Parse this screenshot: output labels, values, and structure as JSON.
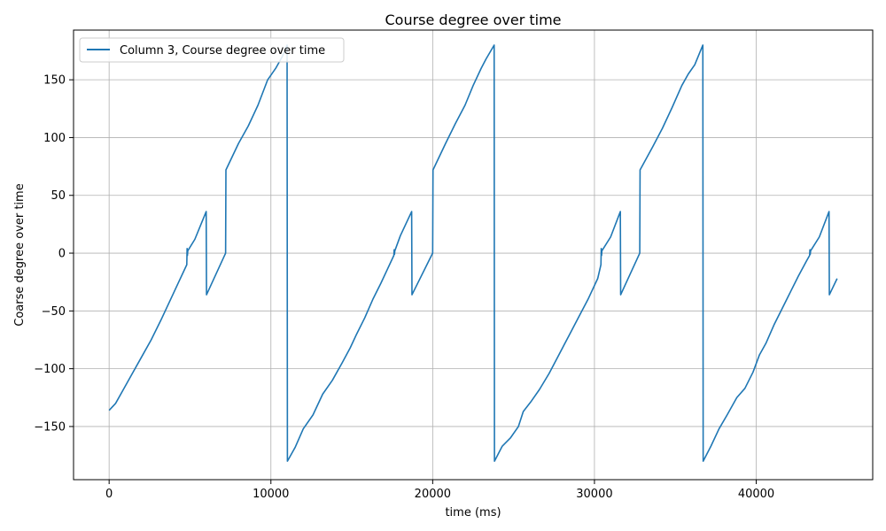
{
  "chart_data": {
    "type": "line",
    "title": "Course degree over time",
    "xlabel": "time (ms)",
    "ylabel": "Coarse degree over time",
    "xlim": [
      -2200,
      47200
    ],
    "ylim": [
      -196,
      193
    ],
    "xticks": [
      0,
      10000,
      20000,
      30000,
      40000
    ],
    "yticks": [
      -150,
      -100,
      -50,
      0,
      50,
      100,
      150
    ],
    "xtick_labels": [
      "0",
      "10000",
      "20000",
      "30000",
      "40000"
    ],
    "ytick_labels": [
      "−150",
      "−100",
      "−50",
      "0",
      "50",
      "100",
      "150"
    ],
    "grid": true,
    "legend": "top-left",
    "series": [
      {
        "name": "Column 3, Course degree over time",
        "color": "#1f77b4",
        "points": [
          [
            0,
            -136
          ],
          [
            400,
            -130
          ],
          [
            800,
            -120
          ],
          [
            1400,
            -105
          ],
          [
            2000,
            -90
          ],
          [
            2600,
            -75
          ],
          [
            3200,
            -58
          ],
          [
            3800,
            -40
          ],
          [
            4300,
            -25
          ],
          [
            4800,
            -10
          ],
          [
            4820,
            4
          ],
          [
            4840,
            -2
          ],
          [
            4860,
            2
          ],
          [
            5300,
            12
          ],
          [
            6000,
            36
          ],
          [
            6020,
            -36
          ],
          [
            7200,
            0
          ],
          [
            7220,
            72
          ],
          [
            8000,
            95
          ],
          [
            8600,
            110
          ],
          [
            9200,
            128
          ],
          [
            9800,
            150
          ],
          [
            10300,
            160
          ],
          [
            10700,
            170
          ],
          [
            11000,
            180
          ],
          [
            11020,
            -180
          ],
          [
            11500,
            -168
          ],
          [
            12000,
            -152
          ],
          [
            12600,
            -140
          ],
          [
            13200,
            -122
          ],
          [
            13800,
            -110
          ],
          [
            14400,
            -95
          ],
          [
            14900,
            -82
          ],
          [
            15300,
            -70
          ],
          [
            15800,
            -56
          ],
          [
            16300,
            -40
          ],
          [
            16800,
            -26
          ],
          [
            17200,
            -14
          ],
          [
            17600,
            -2
          ],
          [
            17620,
            3
          ],
          [
            17640,
            -1
          ],
          [
            17660,
            2
          ],
          [
            18000,
            15
          ],
          [
            18700,
            36
          ],
          [
            18720,
            -36
          ],
          [
            20000,
            0
          ],
          [
            20020,
            72
          ],
          [
            20800,
            95
          ],
          [
            21400,
            112
          ],
          [
            22000,
            128
          ],
          [
            22500,
            145
          ],
          [
            23000,
            160
          ],
          [
            23300,
            168
          ],
          [
            23800,
            180
          ],
          [
            23820,
            -180
          ],
          [
            24300,
            -167
          ],
          [
            24800,
            -160
          ],
          [
            25300,
            -150
          ],
          [
            25600,
            -137
          ],
          [
            26100,
            -128
          ],
          [
            26600,
            -118
          ],
          [
            27200,
            -104
          ],
          [
            27800,
            -88
          ],
          [
            28400,
            -72
          ],
          [
            29000,
            -56
          ],
          [
            29600,
            -40
          ],
          [
            30200,
            -22
          ],
          [
            30400,
            -10
          ],
          [
            30420,
            4
          ],
          [
            30440,
            -2
          ],
          [
            30460,
            2
          ],
          [
            31000,
            14
          ],
          [
            31600,
            36
          ],
          [
            31620,
            -36
          ],
          [
            32800,
            0
          ],
          [
            32820,
            72
          ],
          [
            33600,
            92
          ],
          [
            34200,
            108
          ],
          [
            34800,
            126
          ],
          [
            35400,
            145
          ],
          [
            35800,
            155
          ],
          [
            36200,
            163
          ],
          [
            36700,
            180
          ],
          [
            36720,
            -180
          ],
          [
            37200,
            -167
          ],
          [
            37700,
            -152
          ],
          [
            38200,
            -140
          ],
          [
            38800,
            -125
          ],
          [
            39300,
            -117
          ],
          [
            39800,
            -103
          ],
          [
            40200,
            -88
          ],
          [
            40600,
            -78
          ],
          [
            41100,
            -62
          ],
          [
            41600,
            -48
          ],
          [
            42100,
            -34
          ],
          [
            42600,
            -20
          ],
          [
            43100,
            -7
          ],
          [
            43300,
            -2
          ],
          [
            43320,
            3
          ],
          [
            43340,
            -1
          ],
          [
            43360,
            2
          ],
          [
            43900,
            14
          ],
          [
            44500,
            36
          ],
          [
            44520,
            -36
          ],
          [
            45000,
            -22
          ]
        ]
      }
    ]
  }
}
